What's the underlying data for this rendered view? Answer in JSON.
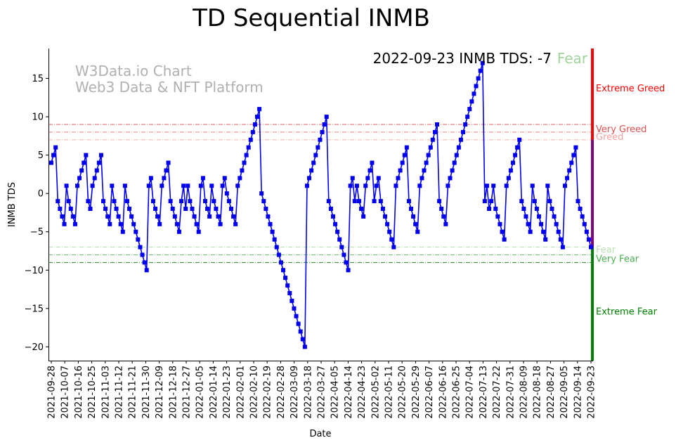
{
  "chart_data": {
    "type": "line",
    "title": "TD Sequential INMB",
    "xlabel": "Date",
    "ylabel": "INMB TDS",
    "ylim": [
      -21.8,
      18.9
    ],
    "yticks": [
      15,
      10,
      5,
      0,
      -5,
      -10,
      -15,
      -20
    ],
    "ytick_labels": [
      "15",
      "10",
      "5",
      "0",
      "−5",
      "−10",
      "−15",
      "−20"
    ],
    "grid": false,
    "watermark": [
      "W3Data.io Chart",
      "Web3 Data & NFT Platform"
    ],
    "headline": {
      "text": "2022-09-23 INMB TDS: -7",
      "status": "Fear",
      "status_color": "#9fd49a"
    },
    "x_start": "2021-09-28",
    "x_end": "2022-09-23",
    "xtick_labels": [
      "2021-09-28",
      "2021-10-07",
      "2021-10-16",
      "2021-10-25",
      "2021-11-03",
      "2021-11-12",
      "2021-11-21",
      "2021-11-30",
      "2021-12-09",
      "2021-12-18",
      "2021-12-27",
      "2022-01-05",
      "2022-01-14",
      "2022-01-23",
      "2022-02-01",
      "2022-02-10",
      "2022-02-19",
      "2022-02-28",
      "2022-03-09",
      "2022-03-18",
      "2022-03-27",
      "2022-04-05",
      "2022-04-14",
      "2022-04-23",
      "2022-05-02",
      "2022-05-11",
      "2022-05-20",
      "2022-05-29",
      "2022-06-07",
      "2022-06-16",
      "2022-06-25",
      "2022-07-04",
      "2022-07-13",
      "2022-07-22",
      "2022-07-31",
      "2022-08-09",
      "2022-08-18",
      "2022-08-27",
      "2022-09-05",
      "2022-09-14",
      "2022-09-23"
    ],
    "thresholds": [
      {
        "value": 9,
        "label": "Very Greed",
        "color": "#e06060",
        "style": "dashdot"
      },
      {
        "value": 8,
        "label": "",
        "color": "#f08080",
        "style": "dashdot"
      },
      {
        "value": 7,
        "label": "Greed",
        "color": "#f5b0a8",
        "style": "dashdot"
      },
      {
        "value": -7,
        "label": "Fear",
        "color": "#b8e0b0",
        "style": "dashdot"
      },
      {
        "value": -8,
        "label": "",
        "color": "#6cc06c",
        "style": "dashdot"
      },
      {
        "value": -9,
        "label": "Very Fear",
        "color": "#2a8a2a",
        "style": "dashdot"
      }
    ],
    "zone_labels": [
      {
        "text": "Extreme Greed",
        "value": 13.7,
        "color": "#ff0000"
      },
      {
        "text": "Very Greed",
        "value": 8.4,
        "color": "#e05050"
      },
      {
        "text": "Greed",
        "value": 7.4,
        "color": "#f5a0a0"
      },
      {
        "text": "Fear",
        "value": -7.3,
        "color": "#b8e0b0"
      },
      {
        "text": "Very Fear",
        "value": -8.5,
        "color": "#4caf50"
      },
      {
        "text": "Extreme Fear",
        "value": -15.4,
        "color": "#008000"
      }
    ],
    "side_bar": [
      {
        "from": 18.9,
        "to": 7,
        "color": "#ff0000"
      },
      {
        "from": 7,
        "to": -7,
        "color": "#800080"
      },
      {
        "from": -7,
        "to": -21.8,
        "color": "#008000"
      }
    ],
    "series": [
      {
        "name": "INMB TDS",
        "color": "#0000ee",
        "marker": "square",
        "start_date": "2021-09-28",
        "values": [
          4,
          5,
          6,
          -1,
          -2,
          -3,
          -4,
          1,
          -1,
          -2,
          -3,
          -4,
          1,
          2,
          3,
          4,
          5,
          -1,
          -2,
          1,
          2,
          3,
          4,
          5,
          -1,
          -2,
          -3,
          -4,
          1,
          -1,
          -2,
          -3,
          -4,
          -5,
          1,
          -1,
          -2,
          -3,
          -4,
          -5,
          -6,
          -7,
          -8,
          -9,
          -10,
          1,
          2,
          -1,
          -2,
          -3,
          -4,
          1,
          2,
          3,
          4,
          -1,
          -2,
          -3,
          -4,
          -5,
          -1,
          1,
          -2,
          1,
          -1,
          -2,
          -3,
          -4,
          -5,
          1,
          2,
          -1,
          -2,
          -3,
          1,
          -1,
          -2,
          -3,
          -4,
          1,
          2,
          0,
          -1,
          -2,
          -3,
          -4,
          1,
          2,
          3,
          4,
          5,
          6,
          7,
          8,
          9,
          10,
          11,
          0,
          -1,
          -2,
          -3,
          -4,
          -5,
          -6,
          -7,
          -8,
          -9,
          -10,
          -11,
          -12,
          -13,
          -14,
          -15,
          -16,
          -17,
          -18,
          -19,
          -20,
          1,
          2,
          3,
          4,
          5,
          6,
          7,
          8,
          9,
          10,
          -1,
          -2,
          -3,
          -4,
          -5,
          -6,
          -7,
          -8,
          -9,
          -10,
          1,
          2,
          -1,
          1,
          -1,
          -2,
          -3,
          1,
          2,
          3,
          4,
          -1,
          1,
          2,
          -1,
          -2,
          -3,
          -4,
          -5,
          -6,
          -7,
          1,
          2,
          3,
          4,
          5,
          6,
          -1,
          -2,
          -3,
          -4,
          -5,
          1,
          2,
          3,
          4,
          5,
          6,
          7,
          8,
          9,
          -1,
          -2,
          -3,
          -4,
          1,
          2,
          3,
          4,
          5,
          6,
          7,
          8,
          9,
          10,
          11,
          12,
          13,
          14,
          15,
          16,
          17,
          -1,
          1,
          -2,
          -1,
          1,
          -2,
          -3,
          -4,
          -5,
          -6,
          1,
          2,
          3,
          4,
          5,
          6,
          7,
          -1,
          -2,
          -3,
          -4,
          -5,
          1,
          -1,
          -2,
          -3,
          -4,
          -5,
          -6,
          1,
          -1,
          -2,
          -3,
          -4,
          -5,
          -6,
          -7,
          1,
          2,
          3,
          4,
          5,
          6,
          -1,
          -2,
          -3,
          -4,
          -5,
          -6,
          -7
        ]
      }
    ]
  }
}
